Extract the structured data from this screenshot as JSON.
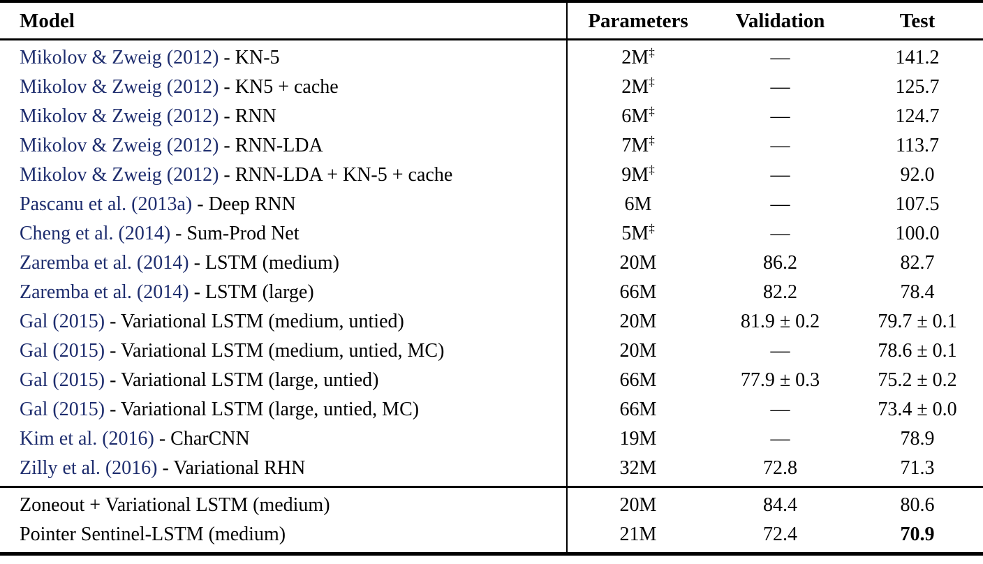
{
  "colors": {
    "citation": "#1e2d6e",
    "text": "#000000",
    "rule": "#000000"
  },
  "table": {
    "columns": [
      "Model",
      "Parameters",
      "Validation",
      "Test"
    ],
    "dagger_symbol": "‡",
    "missing_value": "—",
    "sections": [
      {
        "name": "prior-work",
        "rows": [
          {
            "citation": "Mikolov & Zweig (2012)",
            "model": " - KN-5",
            "parameters": "2M",
            "dagger": true,
            "validation": "—",
            "test": "141.2",
            "test_bold": false
          },
          {
            "citation": "Mikolov & Zweig (2012)",
            "model": " - KN5 + cache",
            "parameters": "2M",
            "dagger": true,
            "validation": "—",
            "test": "125.7",
            "test_bold": false
          },
          {
            "citation": "Mikolov & Zweig (2012)",
            "model": " - RNN",
            "parameters": "6M",
            "dagger": true,
            "validation": "—",
            "test": "124.7",
            "test_bold": false
          },
          {
            "citation": "Mikolov & Zweig (2012)",
            "model": " - RNN-LDA",
            "parameters": "7M",
            "dagger": true,
            "validation": "—",
            "test": "113.7",
            "test_bold": false
          },
          {
            "citation": "Mikolov & Zweig (2012)",
            "model": " - RNN-LDA + KN-5 + cache",
            "parameters": "9M",
            "dagger": true,
            "validation": "—",
            "test": "92.0",
            "test_bold": false
          },
          {
            "citation": "Pascanu et al. (2013a)",
            "model": " - Deep RNN",
            "parameters": "6M",
            "dagger": false,
            "validation": "—",
            "test": "107.5",
            "test_bold": false
          },
          {
            "citation": "Cheng et al. (2014)",
            "model": " - Sum-Prod Net",
            "parameters": "5M",
            "dagger": true,
            "validation": "—",
            "test": "100.0",
            "test_bold": false
          },
          {
            "citation": "Zaremba et al. (2014)",
            "model": " - LSTM (medium)",
            "parameters": "20M",
            "dagger": false,
            "validation": "86.2",
            "test": "82.7",
            "test_bold": false
          },
          {
            "citation": "Zaremba et al. (2014)",
            "model": " - LSTM (large)",
            "parameters": "66M",
            "dagger": false,
            "validation": "82.2",
            "test": "78.4",
            "test_bold": false
          },
          {
            "citation": "Gal (2015)",
            "model": " - Variational LSTM (medium, untied)",
            "parameters": "20M",
            "dagger": false,
            "validation": "81.9 ± 0.2",
            "test": "79.7 ± 0.1",
            "test_bold": false
          },
          {
            "citation": "Gal (2015)",
            "model": " - Variational LSTM (medium, untied, MC)",
            "parameters": "20M",
            "dagger": false,
            "validation": "—",
            "test": "78.6 ± 0.1",
            "test_bold": false
          },
          {
            "citation": "Gal (2015)",
            "model": " - Variational LSTM (large, untied)",
            "parameters": "66M",
            "dagger": false,
            "validation": "77.9 ± 0.3",
            "test": "75.2 ± 0.2",
            "test_bold": false
          },
          {
            "citation": "Gal (2015)",
            "model": " - Variational LSTM (large, untied, MC)",
            "parameters": "66M",
            "dagger": false,
            "validation": "—",
            "test": "73.4 ± 0.0",
            "test_bold": false
          },
          {
            "citation": "Kim et al. (2016)",
            "model": " - CharCNN",
            "parameters": "19M",
            "dagger": false,
            "validation": "—",
            "test": "78.9",
            "test_bold": false
          },
          {
            "citation": "Zilly et al. (2016)",
            "model": " - Variational RHN",
            "parameters": "32M",
            "dagger": false,
            "validation": "72.8",
            "test": "71.3",
            "test_bold": false
          }
        ]
      },
      {
        "name": "this-work",
        "rows": [
          {
            "citation": "",
            "model": "Zoneout + Variational LSTM (medium)",
            "parameters": "20M",
            "dagger": false,
            "validation": "84.4",
            "test": "80.6",
            "test_bold": false
          },
          {
            "citation": "",
            "model": "Pointer Sentinel-LSTM (medium)",
            "parameters": "21M",
            "dagger": false,
            "validation": "72.4",
            "test": "70.9",
            "test_bold": true
          }
        ]
      }
    ]
  }
}
